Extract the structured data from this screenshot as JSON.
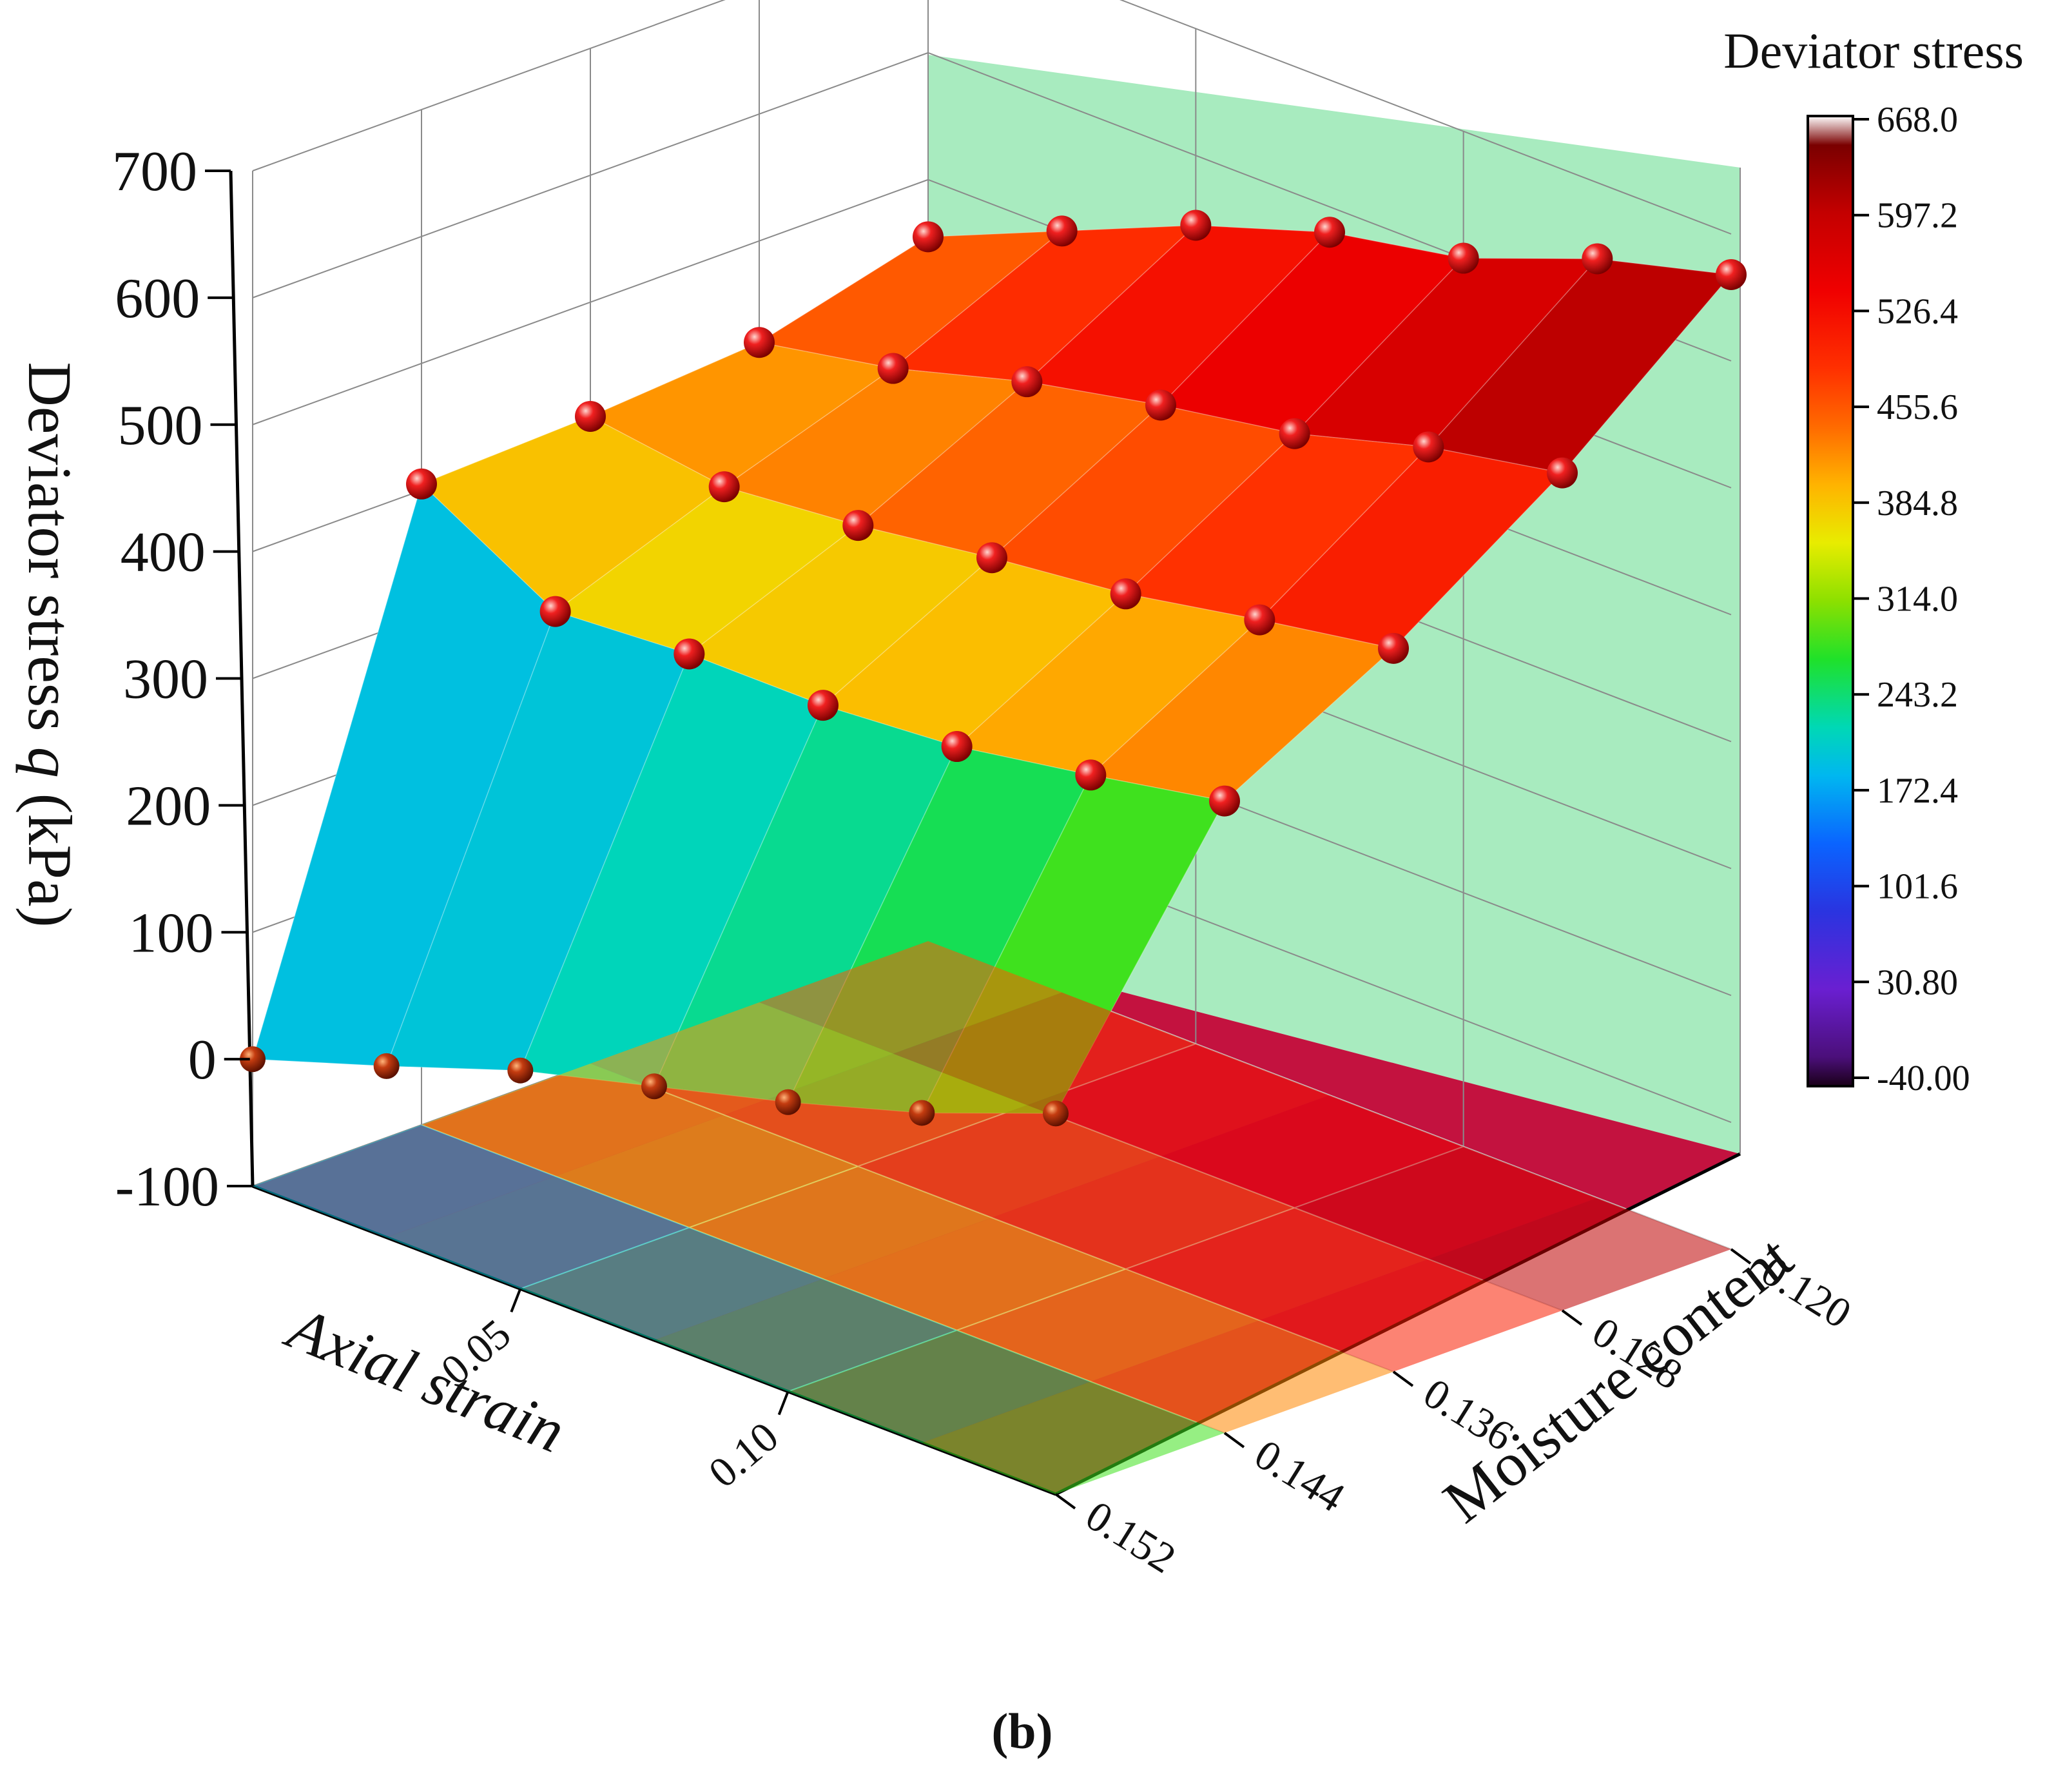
{
  "chart_data": {
    "type": "surface3d",
    "panel_label": "(b)",
    "zlabel": "Deviator stress q (kPa)",
    "zlabel_parts": {
      "prefix": "Deviator stress ",
      "italic": "q",
      "suffix": " (kPa)"
    },
    "xlabel": "Axial strain",
    "ylabel": "Moisture content",
    "zlim": [
      -100,
      700
    ],
    "z_ticks": [
      "-100",
      "0",
      "100",
      "200",
      "300",
      "400",
      "500",
      "600",
      "700"
    ],
    "x_ticks": [
      "0.05",
      "0.10"
    ],
    "y_ticks": [
      "0.120",
      "0.128",
      "0.136",
      "0.144",
      "0.152"
    ],
    "colorbar": {
      "title": "Deviator stress",
      "ticks": [
        "668.0",
        "597.2",
        "526.4",
        "455.6",
        "384.8",
        "314.0",
        "243.2",
        "172.4",
        "101.6",
        "30.80",
        "-40.00"
      ],
      "range": [
        -40.0,
        668.0
      ]
    },
    "grid": true,
    "x_values": [
      0.0,
      0.025,
      0.05,
      0.075,
      0.1,
      0.125,
      0.15
    ],
    "moisture_values": [
      0.152,
      0.144,
      0.136,
      0.128,
      0.12
    ],
    "q_by_moisture": [
      {
        "moisture": 0.152,
        "values": [
          0,
          35,
          72,
          100,
          128,
          160,
          200
        ]
      },
      {
        "moisture": 0.144,
        "values": [
          405,
          345,
          352,
          352,
          360,
          378,
          398
        ]
      },
      {
        "moisture": 0.136,
        "values": [
          410,
          395,
          405,
          420,
          432,
          452,
          470
        ]
      },
      {
        "moisture": 0.128,
        "values": [
          420,
          440,
          470,
          492,
          510,
          540,
          560
        ]
      },
      {
        "moisture": 0.12,
        "values": [
          455,
          500,
          545,
          580,
          600,
          640,
          668
        ]
      }
    ]
  }
}
